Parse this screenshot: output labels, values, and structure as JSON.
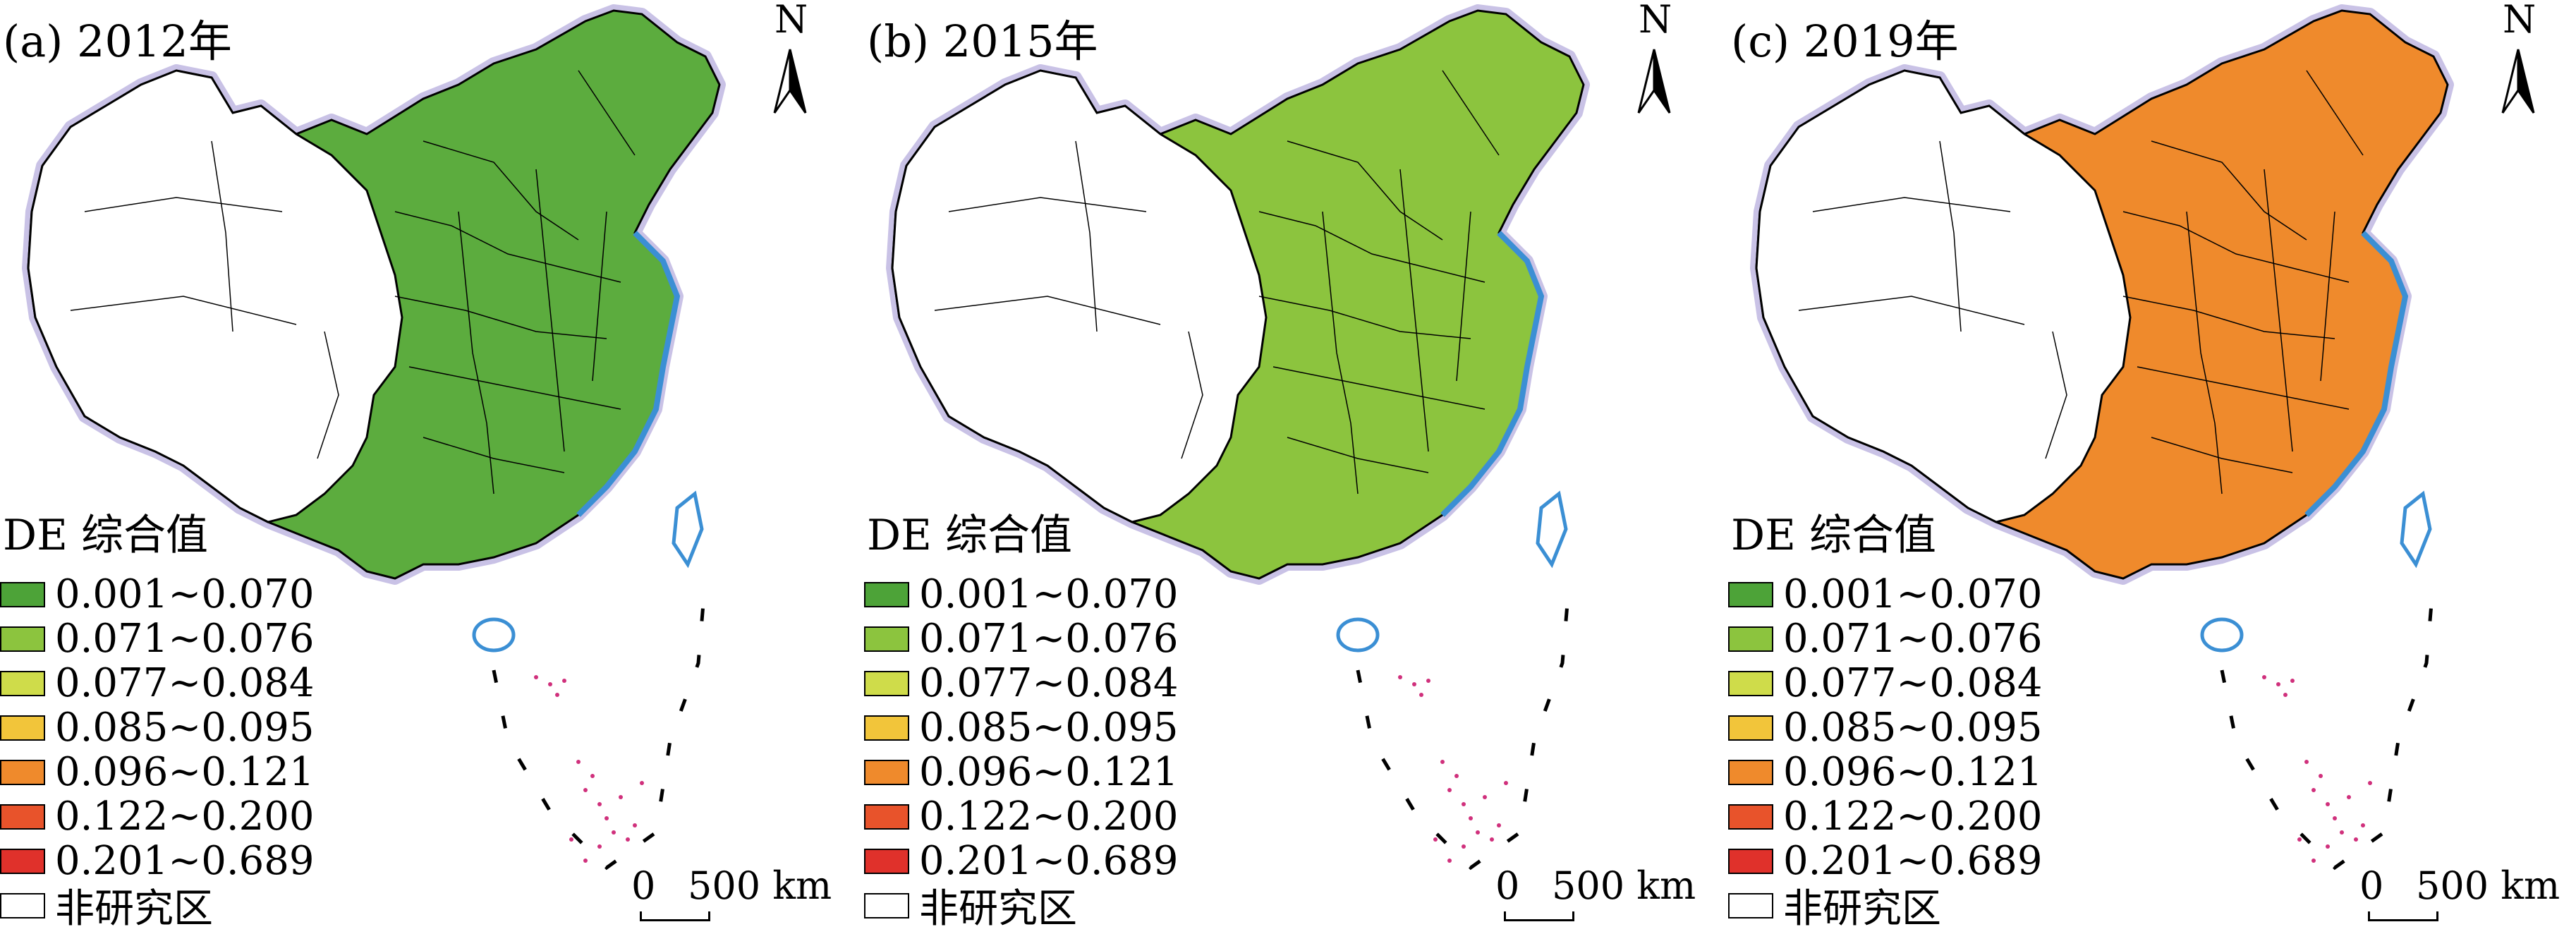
{
  "panels": [
    {
      "title": "(a) 2012年",
      "fill": "#5cac3e"
    },
    {
      "title": "(b) 2015年",
      "fill": "#8cc43e"
    },
    {
      "title": "(c) 2019年",
      "fill": "#ef8a2c"
    }
  ],
  "legend": {
    "title": "DE 综合值",
    "classes": [
      {
        "label": "0.001~0.070",
        "color": "#4da338"
      },
      {
        "label": "0.071~0.076",
        "color": "#8cc43e"
      },
      {
        "label": "0.077~0.084",
        "color": "#cfdc4a"
      },
      {
        "label": "0.085~0.095",
        "color": "#f2c53a"
      },
      {
        "label": "0.096~0.121",
        "color": "#ef8a2c"
      },
      {
        "label": "0.122~0.200",
        "color": "#e8532b"
      },
      {
        "label": "0.201~0.689",
        "color": "#e0312b"
      }
    ],
    "non_study": {
      "label": "非研究区",
      "color": "#ffffff"
    }
  },
  "scale": {
    "zero": "0",
    "distance": "500 km"
  },
  "north_label": "N",
  "colors": {
    "outline": "#000000",
    "halo": "#c9c2e6",
    "coast": "#3b8fd4",
    "islands": "#d0307c"
  }
}
